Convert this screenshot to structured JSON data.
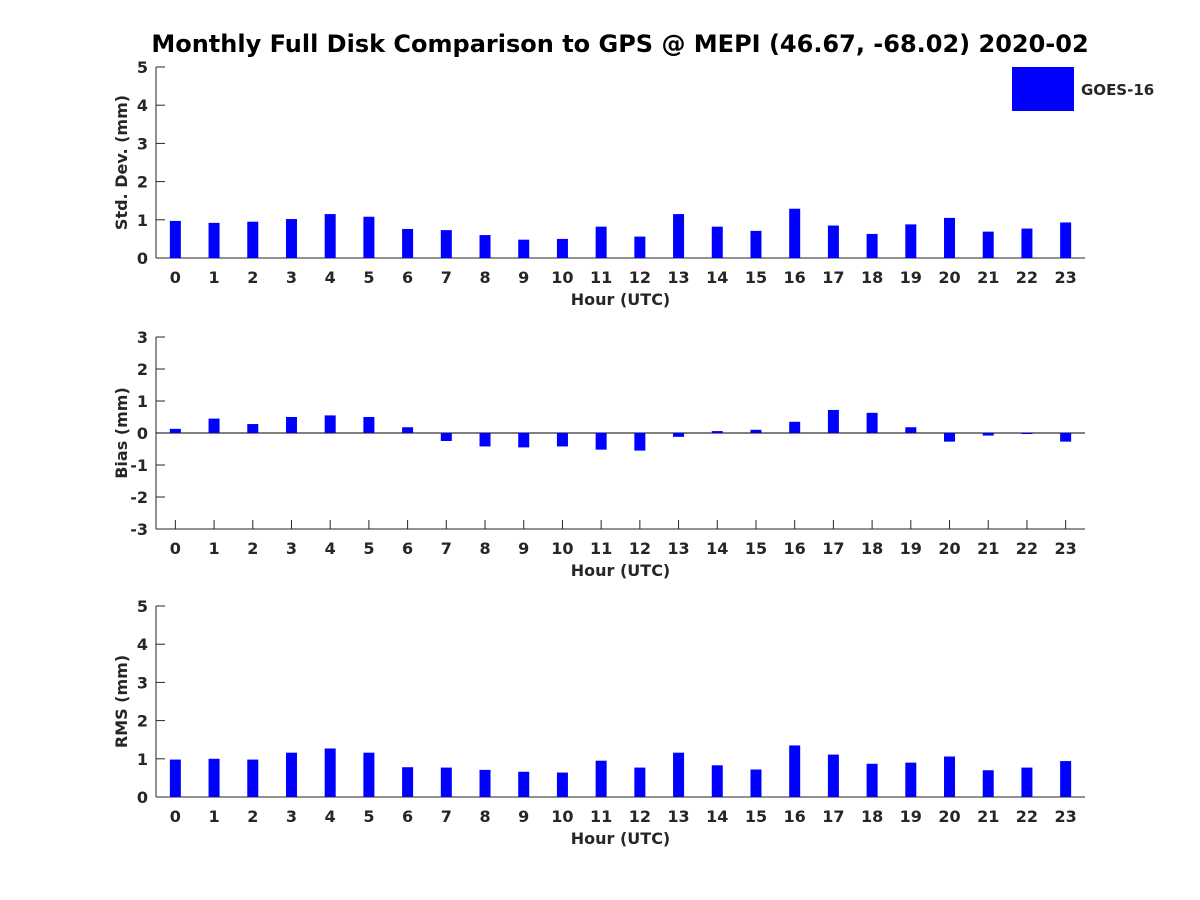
{
  "title": "Monthly Full Disk Comparison to GPS @ MEPI (46.67, -68.02) 2020-02",
  "legend": {
    "label": "GOES-16",
    "color": "#0000ff"
  },
  "chart_data": [
    {
      "type": "bar",
      "name": "std-dev",
      "ylabel": "Std. Dev. (mm)",
      "xlabel": "Hour (UTC)",
      "ylim": [
        0,
        5
      ],
      "yticks": [
        0,
        1,
        2,
        3,
        4,
        5
      ],
      "categories": [
        "0",
        "1",
        "2",
        "3",
        "4",
        "5",
        "6",
        "7",
        "8",
        "9",
        "10",
        "11",
        "12",
        "13",
        "14",
        "15",
        "16",
        "17",
        "18",
        "19",
        "20",
        "21",
        "22",
        "23"
      ],
      "series": [
        {
          "name": "GOES-16",
          "values": [
            0.97,
            0.92,
            0.95,
            1.02,
            1.15,
            1.08,
            0.76,
            0.73,
            0.6,
            0.48,
            0.5,
            0.82,
            0.56,
            1.15,
            0.82,
            0.71,
            1.29,
            0.85,
            0.63,
            0.88,
            1.05,
            0.69,
            0.77,
            0.93
          ]
        }
      ]
    },
    {
      "type": "bar",
      "name": "bias",
      "ylabel": "Bias (mm)",
      "xlabel": "Hour (UTC)",
      "ylim": [
        -3,
        3
      ],
      "yticks": [
        -3,
        -2,
        -1,
        0,
        1,
        2,
        3
      ],
      "categories": [
        "0",
        "1",
        "2",
        "3",
        "4",
        "5",
        "6",
        "7",
        "8",
        "9",
        "10",
        "11",
        "12",
        "13",
        "14",
        "15",
        "16",
        "17",
        "18",
        "19",
        "20",
        "21",
        "22",
        "23"
      ],
      "series": [
        {
          "name": "GOES-16",
          "values": [
            0.13,
            0.45,
            0.28,
            0.5,
            0.55,
            0.5,
            0.18,
            -0.25,
            -0.42,
            -0.45,
            -0.42,
            -0.52,
            -0.55,
            -0.12,
            0.06,
            0.1,
            0.35,
            0.72,
            0.63,
            0.18,
            -0.27,
            -0.08,
            -0.02,
            -0.27
          ]
        }
      ]
    },
    {
      "type": "bar",
      "name": "rms",
      "ylabel": "RMS (mm)",
      "xlabel": "Hour (UTC)",
      "ylim": [
        0,
        5
      ],
      "yticks": [
        0,
        1,
        2,
        3,
        4,
        5
      ],
      "categories": [
        "0",
        "1",
        "2",
        "3",
        "4",
        "5",
        "6",
        "7",
        "8",
        "9",
        "10",
        "11",
        "12",
        "13",
        "14",
        "15",
        "16",
        "17",
        "18",
        "19",
        "20",
        "21",
        "22",
        "23"
      ],
      "series": [
        {
          "name": "GOES-16",
          "values": [
            0.98,
            1.0,
            0.98,
            1.16,
            1.27,
            1.16,
            0.78,
            0.77,
            0.71,
            0.66,
            0.64,
            0.95,
            0.77,
            1.16,
            0.83,
            0.72,
            1.35,
            1.11,
            0.87,
            0.9,
            1.06,
            0.7,
            0.77,
            0.94
          ]
        }
      ]
    }
  ]
}
